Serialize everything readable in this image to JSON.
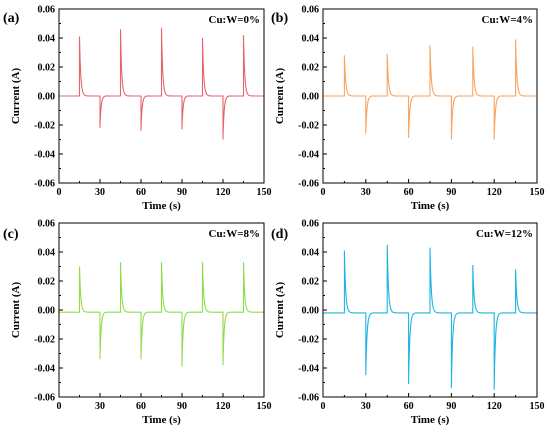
{
  "chart_data": [
    {
      "type": "line",
      "panel_label": "(a)",
      "annotation": "Cu:W=0%",
      "color": "#e8626c",
      "xlabel": "Time (s)",
      "ylabel": "Current (A)",
      "xlim": [
        0,
        150
      ],
      "ylim": [
        -0.06,
        0.06
      ],
      "xticks": [
        "0",
        "30",
        "60",
        "90",
        "120",
        "150"
      ],
      "yticks": [
        "0.06",
        "0.04",
        "0.02",
        "0.00",
        "-0.02",
        "-0.04",
        "-0.06"
      ],
      "baseline": 0.0,
      "events": [
        {
          "t": 15,
          "peak": 0.041
        },
        {
          "t": 30,
          "peak": -0.022
        },
        {
          "t": 45,
          "peak": 0.046
        },
        {
          "t": 60,
          "peak": -0.024
        },
        {
          "t": 75,
          "peak": 0.047
        },
        {
          "t": 90,
          "peak": -0.023
        },
        {
          "t": 105,
          "peak": 0.04
        },
        {
          "t": 120,
          "peak": -0.03
        },
        {
          "t": 135,
          "peak": 0.042
        }
      ]
    },
    {
      "type": "line",
      "panel_label": "(b)",
      "annotation": "Cu:W=4%",
      "color": "#f5a463",
      "xlabel": "Time (s)",
      "ylabel": "Current (A)",
      "xlim": [
        0,
        150
      ],
      "ylim": [
        -0.06,
        0.06
      ],
      "xticks": [
        "0",
        "30",
        "60",
        "90",
        "120",
        "150"
      ],
      "yticks": [
        "0.06",
        "0.04",
        "0.02",
        "0.00",
        "-0.02",
        "-0.04",
        "-0.06"
      ],
      "baseline": 0.0,
      "events": [
        {
          "t": 15,
          "peak": 0.028
        },
        {
          "t": 30,
          "peak": -0.026
        },
        {
          "t": 45,
          "peak": 0.029
        },
        {
          "t": 60,
          "peak": -0.029
        },
        {
          "t": 75,
          "peak": 0.035
        },
        {
          "t": 90,
          "peak": -0.03
        },
        {
          "t": 105,
          "peak": 0.034
        },
        {
          "t": 120,
          "peak": -0.03
        },
        {
          "t": 135,
          "peak": 0.039
        }
      ]
    },
    {
      "type": "line",
      "panel_label": "(c)",
      "annotation": "Cu:W=8%",
      "color": "#8fdc4a",
      "xlabel": "Time (s)",
      "ylabel": "Current (A)",
      "xlim": [
        0,
        150
      ],
      "ylim": [
        -0.06,
        0.06
      ],
      "xticks": [
        "0",
        "30",
        "60",
        "90",
        "120",
        "150"
      ],
      "yticks": [
        "0.06",
        "0.04",
        "0.02",
        "0.00",
        "-0.02",
        "-0.04",
        "-0.06"
      ],
      "baseline": -0.0015,
      "events": [
        {
          "t": 15,
          "peak": 0.03
        },
        {
          "t": 30,
          "peak": -0.034
        },
        {
          "t": 45,
          "peak": 0.033
        },
        {
          "t": 60,
          "peak": -0.034
        },
        {
          "t": 75,
          "peak": 0.033
        },
        {
          "t": 90,
          "peak": -0.039
        },
        {
          "t": 105,
          "peak": 0.033
        },
        {
          "t": 120,
          "peak": -0.038
        },
        {
          "t": 135,
          "peak": 0.033
        }
      ]
    },
    {
      "type": "line",
      "panel_label": "(d)",
      "annotation": "Cu:W=12%",
      "color": "#1fb3e0",
      "xlabel": "Time (s)",
      "ylabel": "Current (A)",
      "xlim": [
        0,
        150
      ],
      "ylim": [
        -0.06,
        0.06
      ],
      "xticks": [
        "0",
        "30",
        "60",
        "90",
        "120",
        "150"
      ],
      "yticks": [
        "0.06",
        "0.04",
        "0.02",
        "0.00",
        "-0.02",
        "-0.04",
        "-0.06"
      ],
      "baseline": -0.002,
      "events": [
        {
          "t": 15,
          "peak": 0.041
        },
        {
          "t": 30,
          "peak": -0.045
        },
        {
          "t": 45,
          "peak": 0.045
        },
        {
          "t": 60,
          "peak": -0.051
        },
        {
          "t": 75,
          "peak": 0.043
        },
        {
          "t": 90,
          "peak": -0.054
        },
        {
          "t": 105,
          "peak": 0.031
        },
        {
          "t": 120,
          "peak": -0.055
        },
        {
          "t": 135,
          "peak": 0.028
        }
      ]
    }
  ]
}
